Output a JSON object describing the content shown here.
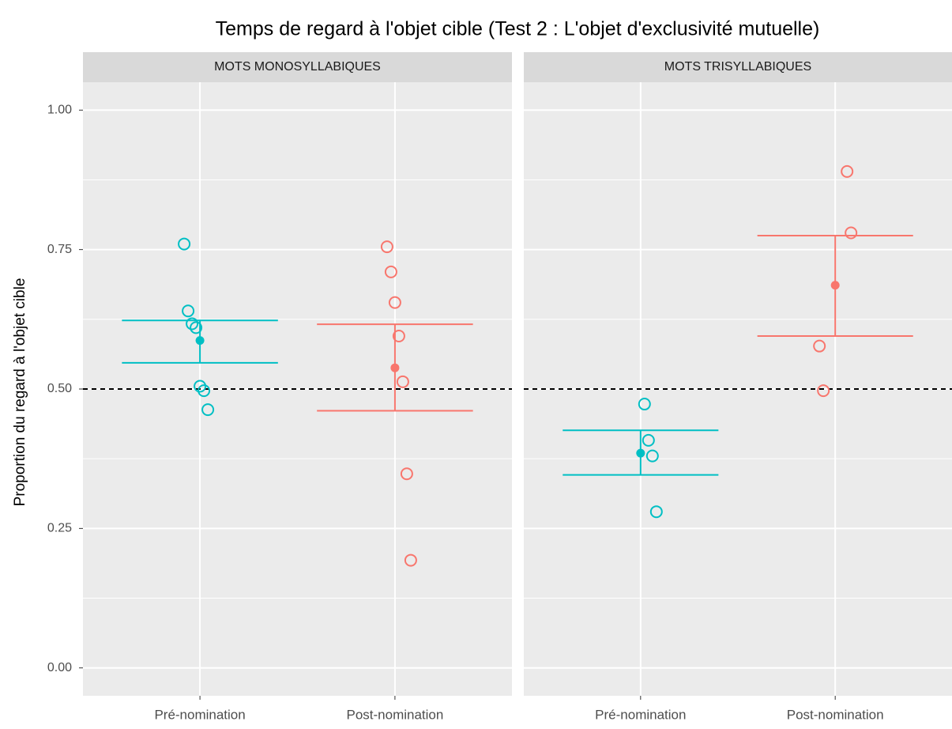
{
  "title": "Temps de regard à l'objet cible (Test 2 : L'objet d'exclusivité mutuelle)",
  "y_label": "Proportion du regard à l'objet cible",
  "chart_data": [
    {
      "type": "dot-errorbar",
      "facet": "MOTS MONOSYLLABIQUES",
      "categories": [
        "Pré-nomination",
        "Post-nomination"
      ],
      "ylim": [
        -0.05,
        1.05
      ],
      "yticks": [
        {
          "value": 0,
          "label": "0.00"
        },
        {
          "value": 0.25,
          "label": "0.25"
        },
        {
          "value": 0.5,
          "label": "0.50"
        },
        {
          "value": 0.75,
          "label": "0.75"
        },
        {
          "value": 1,
          "label": "1.00"
        }
      ],
      "grid": true,
      "hline": 0.5,
      "groups": [
        {
          "color": "#00bfc4",
          "points": [
            0.76,
            0.64,
            0.617,
            0.61,
            0.505,
            0.497,
            0.463
          ],
          "mean": 0.587,
          "low": 0.547,
          "high": 0.623
        },
        {
          "color": "#f8766d",
          "points": [
            0.755,
            0.71,
            0.655,
            0.595,
            0.513,
            0.348,
            0.193
          ],
          "mean": 0.538,
          "low": 0.461,
          "high": 0.616
        }
      ]
    },
    {
      "type": "dot-errorbar",
      "facet": "MOTS TRISYLLABIQUES",
      "categories": [
        "Pré-nomination",
        "Post-nomination"
      ],
      "ylim": [
        -0.05,
        1.05
      ],
      "yticks": [
        {
          "value": 0,
          "label": "0.00"
        },
        {
          "value": 0.25,
          "label": "0.25"
        },
        {
          "value": 0.5,
          "label": "0.50"
        },
        {
          "value": 0.75,
          "label": "0.75"
        },
        {
          "value": 1,
          "label": "1.00"
        }
      ],
      "grid": true,
      "hline": 0.5,
      "groups": [
        {
          "color": "#00bfc4",
          "points": [
            0.473,
            0.408,
            0.38,
            0.28
          ],
          "mean": 0.385,
          "low": 0.346,
          "high": 0.426
        },
        {
          "color": "#f8766d",
          "points": [
            0.89,
            0.78,
            0.577,
            0.497
          ],
          "mean": 0.686,
          "low": 0.595,
          "high": 0.775
        }
      ]
    }
  ]
}
